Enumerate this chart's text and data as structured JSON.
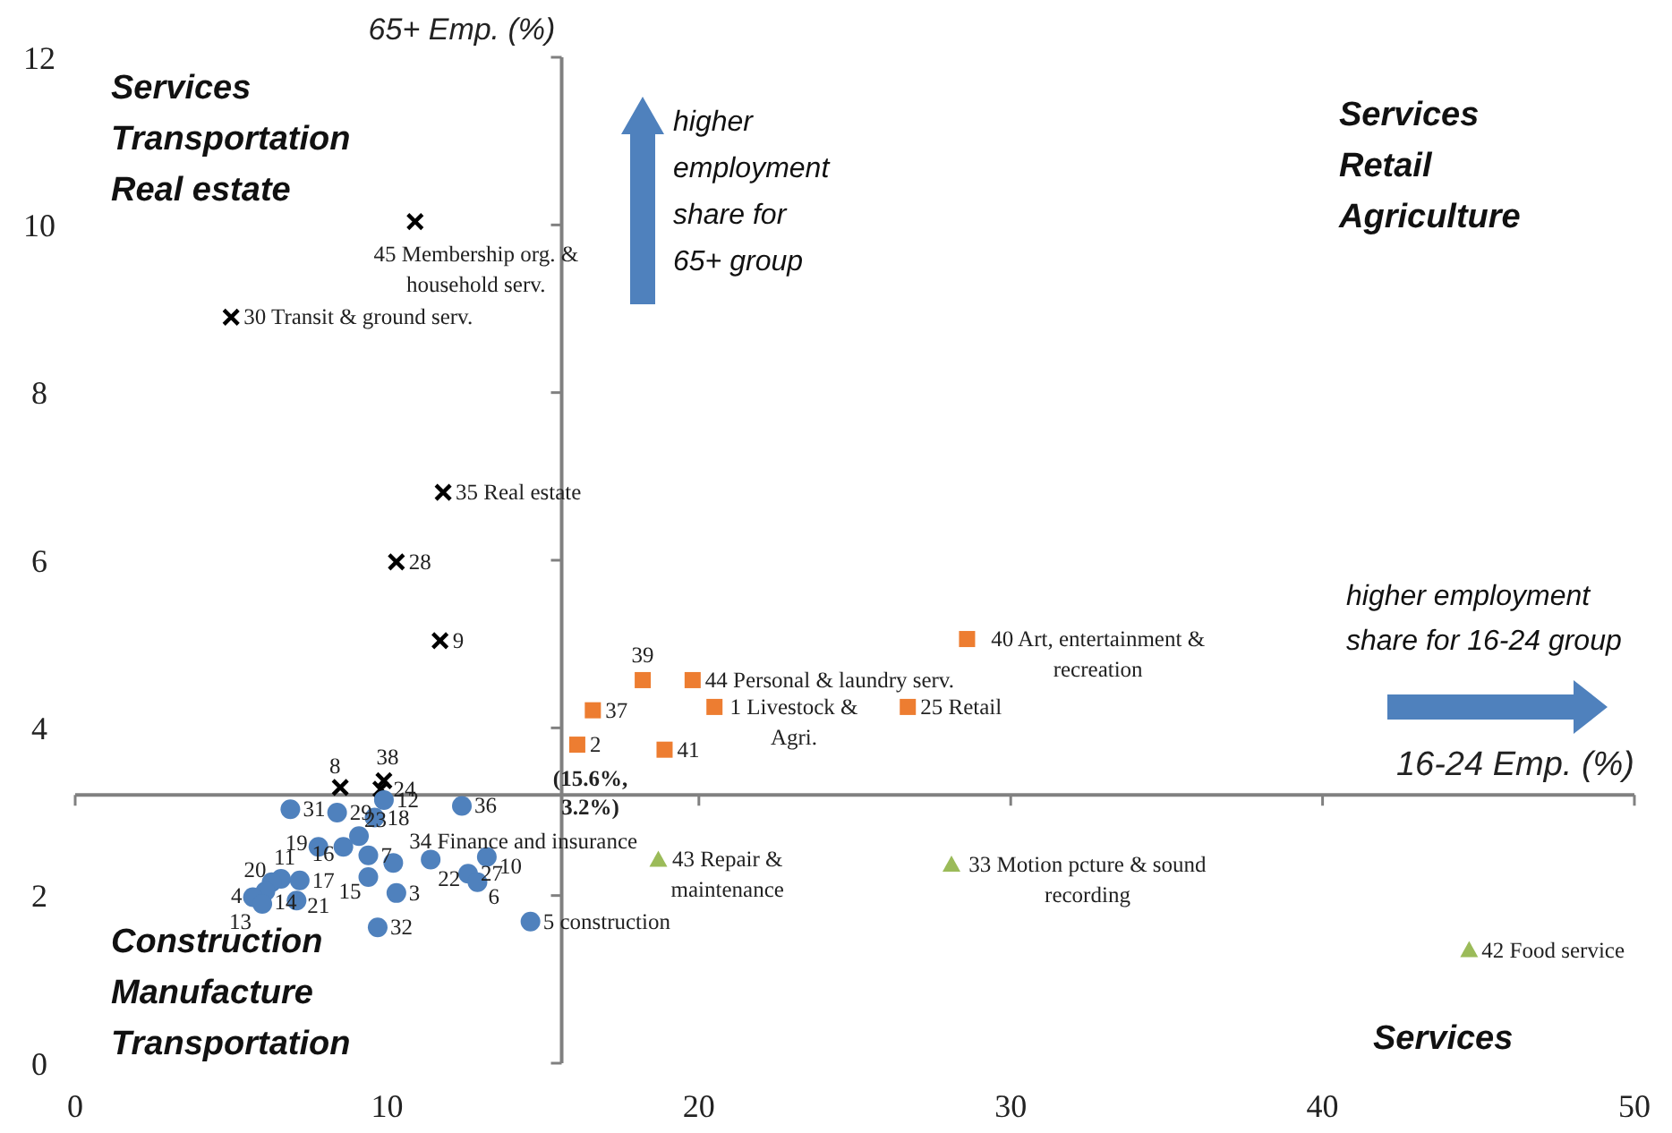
{
  "chart_data": {
    "type": "scatter",
    "xlabel": "16-24 Emp. (%)",
    "ylabel": "65+ Emp. (%)",
    "xlim": [
      0,
      50
    ],
    "xticks": [
      0,
      10,
      20,
      30,
      40,
      50
    ],
    "ylim": [
      0,
      12
    ],
    "yticks": [
      0,
      2,
      4,
      6,
      8,
      10,
      12
    ],
    "grid": false,
    "ref_lines": [
      {
        "axis": "x",
        "value": 15.6,
        "color": "#808080"
      },
      {
        "axis": "y",
        "value": 3.2,
        "color": "#808080"
      }
    ],
    "series": [
      {
        "color": "#000000",
        "marker": "cross",
        "x": [
          10.9,
          5.0,
          11.8,
          10.3,
          11.7,
          8.5,
          9.9,
          9.8
        ],
        "values": [
          10.04,
          8.9,
          6.81,
          5.98,
          5.04,
          3.29,
          3.37,
          3.27
        ]
      },
      {
        "color": "#ed7d31",
        "marker": "square",
        "x": [
          18.2,
          19.8,
          16.6,
          20.5,
          26.7,
          16.1,
          18.9,
          28.6
        ],
        "values": [
          4.57,
          4.57,
          4.21,
          4.25,
          4.25,
          3.8,
          3.74,
          5.06
        ]
      },
      {
        "color": "#9bbb59",
        "marker": "triangle",
        "x": [
          18.7,
          28.1,
          44.7
        ],
        "values": [
          2.43,
          2.37,
          1.35
        ]
      },
      {
        "color": "#4f81bd",
        "marker": "circle",
        "x": [
          6.9,
          8.4,
          9.6,
          9.9,
          12.4,
          9.1,
          7.8,
          8.6,
          9.4,
          10.2,
          11.4,
          13.2,
          12.6,
          12.9,
          9.4,
          10.3,
          9.7,
          14.6,
          7.2,
          6.6,
          6.3,
          6.1,
          5.7,
          6.0,
          7.1
        ],
        "values": [
          3.03,
          2.99,
          2.93,
          3.14,
          3.07,
          2.71,
          2.58,
          2.58,
          2.48,
          2.39,
          2.43,
          2.46,
          2.26,
          2.16,
          2.22,
          2.03,
          1.62,
          1.69,
          2.18,
          2.2,
          2.16,
          2.05,
          1.98,
          1.9,
          1.94
        ]
      }
    ],
    "annotations": [
      "Services\nTransportation\nReal estate",
      "Services\nRetail\nAgriculture",
      "Construction\nManufacture\nTransportation",
      "Services",
      "higher\nemployment\nshare for\n65+ group",
      "higher employment\nshare for 16-24 group",
      {
        "text": "45 Membership org. &\nhousehold serv.",
        "x": 10.9,
        "y": 10.04
      },
      {
        "text": "30 Transit & ground serv.",
        "x": 5.0,
        "y": 8.9
      },
      {
        "text": "35 Real estate",
        "x": 11.8,
        "y": 6.81
      },
      {
        "text": "28",
        "x": 10.3,
        "y": 5.98
      },
      {
        "text": "9",
        "x": 11.7,
        "y": 5.04
      },
      {
        "text": "8",
        "x": 8.5,
        "y": 3.29
      },
      {
        "text": "38",
        "x": 9.9,
        "y": 3.37
      },
      {
        "text": "24",
        "x": 9.8,
        "y": 3.27
      },
      {
        "text": "39",
        "x": 18.2,
        "y": 4.57
      },
      {
        "text": "44 Personal & laundry serv.",
        "x": 19.8,
        "y": 4.57
      },
      {
        "text": "37",
        "x": 16.6,
        "y": 4.21
      },
      {
        "text": "1 Livestock &\nAgri.",
        "x": 20.5,
        "y": 4.25
      },
      {
        "text": "25 Retail",
        "x": 26.7,
        "y": 4.25
      },
      {
        "text": "2",
        "x": 16.1,
        "y": 3.8
      },
      {
        "text": "41",
        "x": 18.9,
        "y": 3.74
      },
      {
        "text": "40 Art, entertainment &\nrecreation",
        "x": 28.6,
        "y": 5.06
      },
      {
        "text": "43 Repair &\nmaintenance",
        "x": 18.7,
        "y": 2.43
      },
      {
        "text": "33 Motion pcture & sound\nrecording",
        "x": 28.1,
        "y": 2.37
      },
      {
        "text": "42 Food service",
        "x": 44.7,
        "y": 1.35
      },
      {
        "text": "(15.6%,\n3.2%)",
        "x": 15.6,
        "y": 3.2
      },
      {
        "text": "31",
        "x": 6.9,
        "y": 3.03
      },
      {
        "text": "29",
        "x": 8.4,
        "y": 2.99
      },
      {
        "text": "18",
        "x": 9.6,
        "y": 2.93
      },
      {
        "text": "12",
        "x": 9.9,
        "y": 3.14
      },
      {
        "text": "36",
        "x": 12.4,
        "y": 3.07
      },
      {
        "text": "23",
        "x": 9.1,
        "y": 2.71
      },
      {
        "text": "19",
        "x": 7.8,
        "y": 2.58
      },
      {
        "text": "16",
        "x": 8.6,
        "y": 2.58
      },
      {
        "text": "7",
        "x": 9.4,
        "y": 2.48
      },
      {
        "text": "34 Finance and insurance",
        "x": 10.2,
        "y": 2.39
      },
      {
        "text": "22",
        "x": 11.4,
        "y": 2.43
      },
      {
        "text": "10",
        "x": 13.2,
        "y": 2.46
      },
      {
        "text": "27",
        "x": 12.6,
        "y": 2.26
      },
      {
        "text": "6",
        "x": 12.9,
        "y": 2.16
      },
      {
        "text": "15",
        "x": 9.4,
        "y": 2.22
      },
      {
        "text": "3",
        "x": 10.3,
        "y": 2.03
      },
      {
        "text": "32",
        "x": 9.7,
        "y": 1.62
      },
      {
        "text": "5 construction",
        "x": 14.6,
        "y": 1.69
      },
      {
        "text": "17",
        "x": 7.2,
        "y": 2.18
      },
      {
        "text": "11",
        "x": 6.6,
        "y": 2.2
      },
      {
        "text": "20",
        "x": 6.3,
        "y": 2.16
      },
      {
        "text": "14",
        "x": 6.1,
        "y": 2.05
      },
      {
        "text": "4",
        "x": 5.7,
        "y": 1.98
      },
      {
        "text": "13",
        "x": 6.0,
        "y": 1.9
      },
      {
        "text": "21",
        "x": 7.1,
        "y": 1.94
      }
    ]
  }
}
